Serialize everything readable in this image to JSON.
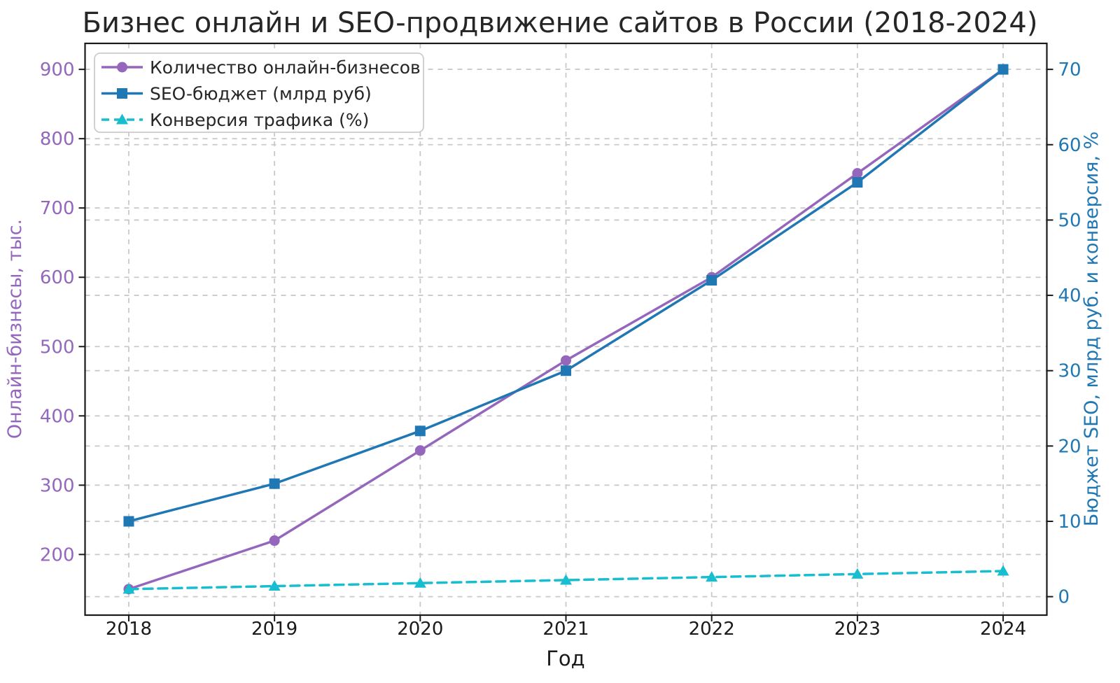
{
  "title": "Бизнес онлайн и SEO-продвижение сайтов в России (2018-2024)",
  "chart_data": {
    "type": "line",
    "title": "Бизнес онлайн и SEO-продвижение сайтов в России (2018-2024)",
    "xlabel": "Год",
    "ylabel_left": "Онлайн-бизнесы, тыс.",
    "ylabel_right": "Бюджет SEO, млрд руб. и конверсия, %",
    "x": [
      2018,
      2019,
      2020,
      2021,
      2022,
      2023,
      2024
    ],
    "x_tick_labels": [
      "2018",
      "2019",
      "2020",
      "2021",
      "2022",
      "2023",
      "2024"
    ],
    "xlim": [
      2017.7,
      2024.3
    ],
    "left_axis": {
      "ticks": [
        200,
        300,
        400,
        500,
        600,
        700,
        800,
        900
      ],
      "lim": [
        112.5,
        937.5
      ],
      "color": "#9467bd"
    },
    "right_axis": {
      "ticks": [
        0,
        10,
        20,
        30,
        40,
        50,
        60,
        70
      ],
      "lim": [
        -2.45,
        73.45
      ],
      "color": "#1f77b4"
    },
    "grid": {
      "visible": true,
      "style": "dashed",
      "color": "#c9c9c9",
      "vertical_per_year": true
    },
    "legend_position": "upper left",
    "series": [
      {
        "name": "Количество онлайн-бизнесов",
        "axis": "left",
        "values": [
          150,
          220,
          350,
          480,
          600,
          750,
          900
        ],
        "color": "#9467bd",
        "marker": "circle",
        "line_style": "solid"
      },
      {
        "name": "SEO-бюджет (млрд руб)",
        "axis": "right",
        "values": [
          10,
          15,
          22,
          30,
          42,
          55,
          70
        ],
        "color": "#1f77b4",
        "marker": "square",
        "line_style": "solid"
      },
      {
        "name": "Конверсия трафика (%)",
        "axis": "right",
        "values": [
          1.0,
          1.4,
          1.8,
          2.2,
          2.6,
          3.0,
          3.4
        ],
        "color": "#17becf",
        "marker": "triangle",
        "line_style": "dashed"
      }
    ]
  },
  "style": {
    "spine_color": "#1a1a1a",
    "tick_mark_color": "#1a1a1a",
    "x_tick_label_color": "#1a1a1a",
    "title_color": "#262626",
    "legend_border_color": "#cccccc",
    "legend_bg_color": "#ffffff",
    "legend_text_color": "#262626",
    "background": "#ffffff"
  }
}
